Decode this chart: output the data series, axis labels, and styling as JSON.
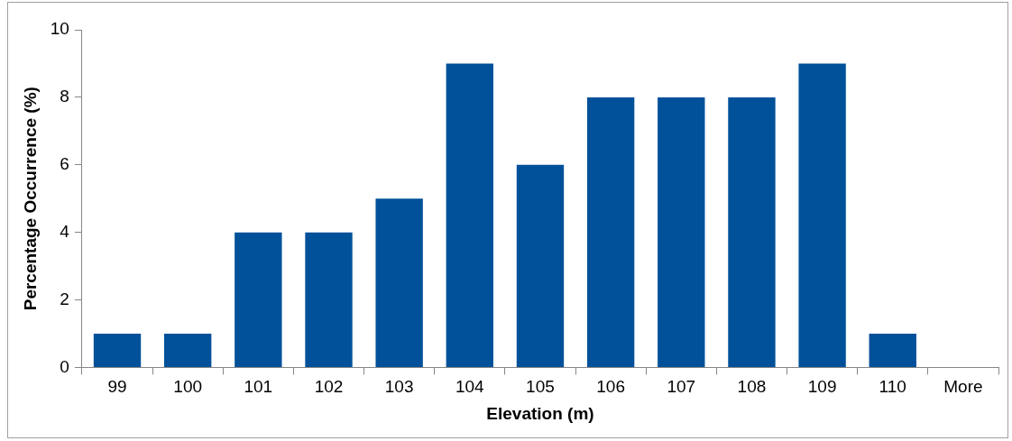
{
  "chart_data": {
    "type": "bar",
    "xlabel": "Elevation (m)",
    "ylabel": "Percentage Occurrence (%)",
    "categories": [
      "99",
      "100",
      "101",
      "102",
      "103",
      "104",
      "105",
      "106",
      "107",
      "108",
      "109",
      "110",
      "More"
    ],
    "values": [
      1,
      1,
      4,
      4,
      5,
      9,
      6,
      8,
      8,
      8,
      9,
      1,
      0
    ],
    "color": "#00519a",
    "ylim": [
      0,
      10
    ],
    "yticks": [
      0,
      2,
      4,
      6,
      8,
      10
    ],
    "grid": false,
    "legend": false
  }
}
